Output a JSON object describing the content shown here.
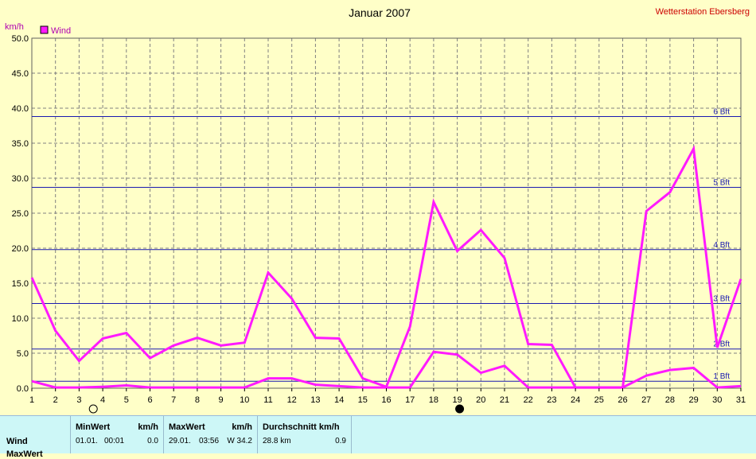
{
  "header": {
    "station": "Wetterstation Ebersberg"
  },
  "colors": {
    "series": "#ff1aff",
    "ref_line": "#1a1ab0",
    "grid": "#808080",
    "background": "#ffffc8",
    "panel": "#cdf7f7"
  },
  "chart_data": {
    "type": "line",
    "title": "Januar 2007",
    "ylabel": "km/h",
    "ylim": [
      0,
      50
    ],
    "xlim": [
      1,
      31
    ],
    "x_ticks": [
      1,
      2,
      3,
      4,
      5,
      6,
      7,
      8,
      9,
      10,
      11,
      12,
      13,
      14,
      15,
      16,
      17,
      18,
      19,
      20,
      21,
      22,
      23,
      24,
      25,
      26,
      27,
      28,
      29,
      30,
      31
    ],
    "y_ticks": [
      "0.0",
      "5.0",
      "10.0",
      "15.0",
      "20.0",
      "25.0",
      "30.0",
      "35.0",
      "40.0",
      "45.0",
      "50.0"
    ],
    "grid": true,
    "legend": {
      "placement": "top-left",
      "entries": [
        "Wind"
      ]
    },
    "series": [
      {
        "name": "Wind",
        "values": [
          15.8,
          8.2,
          3.9,
          7.1,
          7.9,
          4.3,
          6.1,
          7.2,
          6.1,
          6.5,
          16.5,
          12.8,
          7.2,
          7.1,
          1.4,
          0.2,
          8.8,
          26.6,
          19.6,
          22.6,
          18.6,
          6.3,
          6.2,
          0.1,
          0.1,
          0.1,
          25.3,
          28.0,
          34.2,
          5.8,
          15.6
        ]
      },
      {
        "values": [
          1.0,
          0.1,
          0.1,
          0.2,
          0.4,
          0.1,
          0.1,
          0.1,
          0.1,
          0.1,
          1.4,
          1.4,
          0.5,
          0.3,
          0.1,
          0.1,
          0.1,
          5.2,
          4.8,
          2.2,
          3.2,
          0.1,
          0.1,
          0.1,
          0.1,
          0.1,
          1.8,
          2.6,
          2.9,
          0.1,
          0.3
        ]
      }
    ],
    "reference_lines": [
      {
        "label": "1 Bft",
        "value": 1.0
      },
      {
        "label": "2 Bft",
        "value": 5.6
      },
      {
        "label": "3 Bft",
        "value": 12.1
      },
      {
        "label": "4 Bft",
        "value": 19.8
      },
      {
        "label": "5 Bft",
        "value": 28.7
      },
      {
        "label": "6 Bft",
        "value": 38.8
      }
    ],
    "moon_phases": [
      {
        "day": 3.6,
        "phase": "full-moon"
      },
      {
        "day": 19.1,
        "phase": "new-moon"
      }
    ]
  },
  "stats": {
    "row_label": "Wind",
    "row_label_2": "MaxWert",
    "min": {
      "header": "MinWert",
      "unit": "km/h",
      "date": "01.01.",
      "time": "00:01",
      "value": "0.0"
    },
    "max": {
      "header": "MaxWert",
      "unit": "km/h",
      "date": "29.01.",
      "time": "03:56",
      "value": "W 34.2"
    },
    "avg": {
      "header": "Durchschnitt km/h",
      "distance": "28.8 km",
      "value": "0.9"
    }
  }
}
